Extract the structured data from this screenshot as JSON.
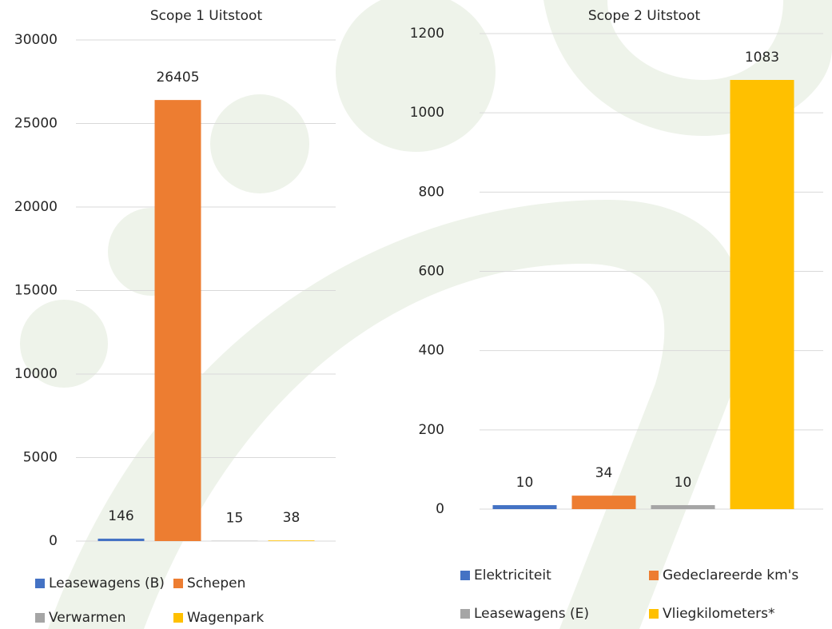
{
  "chart_data": [
    {
      "type": "bar",
      "title": "Scope 1 Uitstoot",
      "ylim": [
        0,
        30000
      ],
      "yticks": [
        0,
        5000,
        10000,
        15000,
        20000,
        25000,
        30000
      ],
      "grid": true,
      "series": [
        {
          "name": "Leasewagens (B)",
          "color": "#4472c4",
          "values": [
            146
          ]
        },
        {
          "name": "Schepen",
          "color": "#ed7d31",
          "values": [
            26405
          ]
        },
        {
          "name": "Verwarmen",
          "color": "#a5a5a5",
          "values": [
            15
          ]
        },
        {
          "name": "Wagenpark",
          "color": "#ffc000",
          "values": [
            38
          ]
        }
      ]
    },
    {
      "type": "bar",
      "title": "Scope 2 Uitstoot",
      "ylim": [
        0,
        1200
      ],
      "yticks": [
        0,
        200,
        400,
        600,
        800,
        1000,
        1200
      ],
      "grid": true,
      "series": [
        {
          "name": "Elektriciteit",
          "color": "#4472c4",
          "values": [
            10
          ]
        },
        {
          "name": "Gedeclareerde km's",
          "color": "#ed7d31",
          "values": [
            34
          ]
        },
        {
          "name": "Leasewagens (E)",
          "color": "#a5a5a5",
          "values": [
            10
          ]
        },
        {
          "name": "Vliegkilometers*",
          "color": "#ffc000",
          "values": [
            1083
          ]
        }
      ]
    }
  ]
}
